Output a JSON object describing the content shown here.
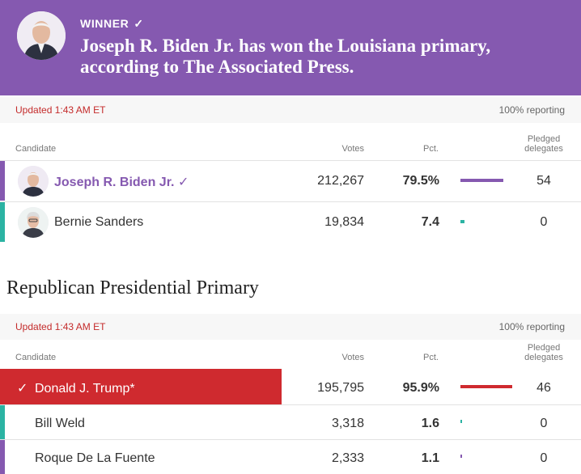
{
  "banner": {
    "label": "WINNER",
    "check": "✓",
    "headline": "Joseph R. Biden Jr. has won the Louisiana primary, according to The Associated Press."
  },
  "colors": {
    "democrat": "#8559b0",
    "republican_winner": "#cf2a2f",
    "teal": "#2bb3a3",
    "update_time": "#c42b2b"
  },
  "dem": {
    "updated": "Updated 1:43 AM ET",
    "reporting": "100% reporting",
    "headers": {
      "candidate": "Candidate",
      "votes": "Votes",
      "pct": "Pct.",
      "delegates_1": "Pledged",
      "delegates_2": "delegates"
    },
    "rows": [
      {
        "name": "Joseph R. Biden Jr.",
        "check": "✓",
        "votes": "212,267",
        "pct": "79.5%",
        "pct_value": 79.5,
        "delegates": "54",
        "stripe": "#8559b0",
        "bar_color": "#8559b0"
      },
      {
        "name": "Bernie Sanders",
        "votes": "19,834",
        "pct": "7.4",
        "pct_value": 7.4,
        "delegates": "0",
        "stripe": "#2bb3a3",
        "bar_color": "#2bb3a3"
      }
    ]
  },
  "rep": {
    "title": "Republican Presidential Primary",
    "updated": "Updated 1:43 AM ET",
    "reporting": "100% reporting",
    "headers": {
      "candidate": "Candidate",
      "votes": "Votes",
      "pct": "Pct.",
      "delegates_1": "Pledged",
      "delegates_2": "delegates"
    },
    "rows": [
      {
        "name": "Donald J. Trump*",
        "check": "✓",
        "votes": "195,795",
        "pct": "95.9%",
        "pct_value": 95.9,
        "delegates": "46",
        "bar_color": "#cf2a2f"
      },
      {
        "name": "Bill Weld",
        "votes": "3,318",
        "pct": "1.6",
        "pct_value": 1.6,
        "delegates": "0",
        "stripe": "#2bb3a3",
        "bar_color": "#2bb3a3"
      },
      {
        "name": "Roque De La Fuente",
        "votes": "2,333",
        "pct": "1.1",
        "pct_value": 1.1,
        "delegates": "0",
        "stripe": "#8559b0",
        "bar_color": "#8559b0"
      }
    ]
  }
}
